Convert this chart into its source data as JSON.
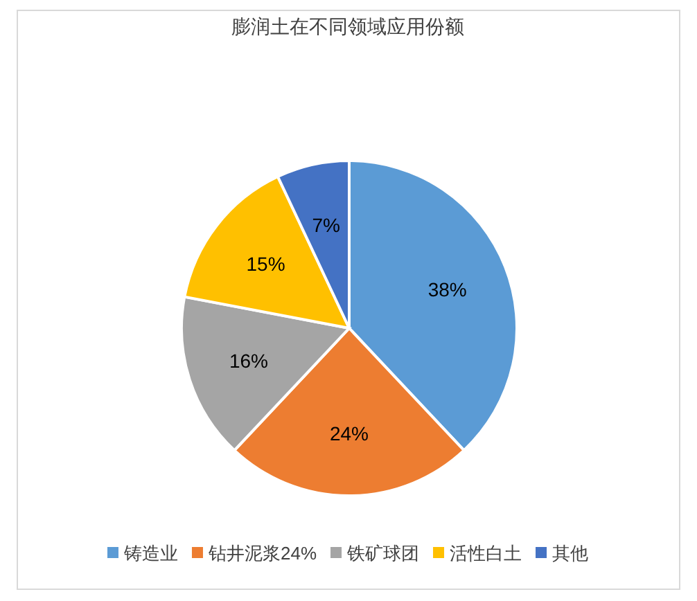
{
  "chart_data": {
    "type": "pie",
    "title": "膨润土在不同领域应用份额",
    "categories": [
      "铸造业",
      "钻井泥浆24%",
      "铁矿球团",
      "活性白土",
      "其他"
    ],
    "values": [
      38,
      24,
      16,
      15,
      7
    ],
    "colors": [
      "#5b9bd5",
      "#ed7d31",
      "#a5a5a5",
      "#ffc000",
      "#4472c4"
    ],
    "value_labels": [
      "38%",
      "24%",
      "16%",
      "15%",
      "7%"
    ],
    "legend": "bottom"
  }
}
